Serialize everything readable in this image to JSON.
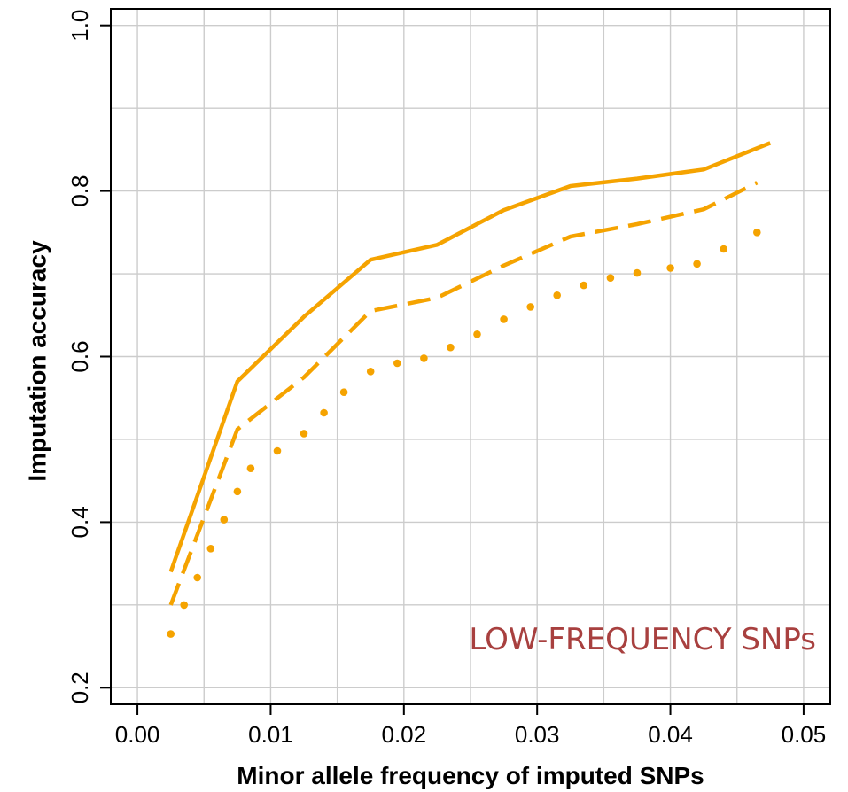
{
  "chart_data": {
    "type": "line",
    "title": "",
    "xlabel": "Minor allele frequency of imputed SNPs",
    "ylabel": "Imputation accuracy",
    "xlim": [
      -0.002,
      0.052
    ],
    "ylim": [
      0.18,
      1.02
    ],
    "x_ticks": [
      0.0,
      0.01,
      0.02,
      0.03,
      0.04,
      0.05
    ],
    "x_tick_labels": [
      "0.00",
      "0.01",
      "0.02",
      "0.03",
      "0.04",
      "0.05"
    ],
    "y_ticks": [
      0.2,
      0.4,
      0.6,
      0.8,
      1.0
    ],
    "y_tick_labels": [
      "0.2",
      "0.4",
      "0.6",
      "0.8",
      "1.0"
    ],
    "grid": true,
    "annotation": "LOW-FREQUENCY SNPs",
    "annotation_color": "#A8403F",
    "line_color": "#F5A300",
    "series": [
      {
        "style": "solid",
        "x": [
          0.0025,
          0.0075,
          0.0125,
          0.0175,
          0.0225,
          0.0275,
          0.0325,
          0.0375,
          0.0425,
          0.0475
        ],
        "y": [
          0.34,
          0.57,
          0.648,
          0.717,
          0.735,
          0.777,
          0.806,
          0.815,
          0.826,
          0.858
        ]
      },
      {
        "style": "dashed",
        "x": [
          0.0025,
          0.0075,
          0.0125,
          0.0175,
          0.0225,
          0.0275,
          0.0325,
          0.0375,
          0.0425,
          0.0465
        ],
        "y": [
          0.3,
          0.512,
          0.575,
          0.655,
          0.671,
          0.71,
          0.745,
          0.76,
          0.778,
          0.81
        ]
      },
      {
        "style": "dotted",
        "x": [
          0.0025,
          0.0035,
          0.0045,
          0.0055,
          0.0065,
          0.0075,
          0.0085,
          0.0105,
          0.0125,
          0.014,
          0.0155,
          0.0175,
          0.0195,
          0.0215,
          0.0235,
          0.0255,
          0.0275,
          0.0295,
          0.0315,
          0.0335,
          0.0355,
          0.0375,
          0.04,
          0.042,
          0.044,
          0.0465
        ],
        "y": [
          0.265,
          0.3,
          0.333,
          0.368,
          0.403,
          0.437,
          0.465,
          0.486,
          0.507,
          0.532,
          0.557,
          0.582,
          0.592,
          0.598,
          0.611,
          0.627,
          0.645,
          0.66,
          0.674,
          0.686,
          0.695,
          0.701,
          0.707,
          0.712,
          0.73,
          0.75
        ]
      }
    ]
  }
}
